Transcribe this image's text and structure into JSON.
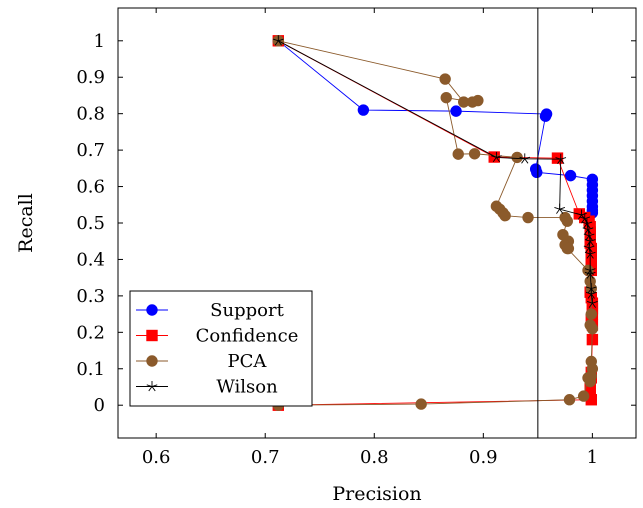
{
  "chart_data": {
    "type": "line",
    "title": "",
    "xlabel": "Precision",
    "ylabel": "Recall",
    "xlim": [
      0.565,
      1.04
    ],
    "ylim": [
      -0.09,
      1.09
    ],
    "x_ticks": [
      0.6,
      0.7,
      0.8,
      0.9,
      1.0
    ],
    "x_tick_labels": [
      "0.6",
      "0.7",
      "0.8",
      "0.9",
      "1"
    ],
    "y_ticks": [
      0,
      0.1,
      0.2,
      0.3,
      0.4,
      0.5,
      0.6,
      0.7,
      0.8,
      0.9,
      1.0
    ],
    "y_tick_labels": [
      "0",
      "0.1",
      "0.2",
      "0.3",
      "0.4",
      "0.5",
      "0.6",
      "0.7",
      "0.8",
      "0.9",
      "1"
    ],
    "vertical_line_x": 0.95,
    "grid": false,
    "legend_position": "bottom-left",
    "series": [
      {
        "name": "Support",
        "color": "#0000ff",
        "marker": "circle",
        "x": [
          0.712,
          0.79,
          0.875,
          0.958,
          0.957,
          0.948,
          0.949,
          0.98,
          1.0,
          1.0,
          1.0,
          1.0,
          1.0,
          1.0,
          1.0,
          1.0
        ],
        "y": [
          1.0,
          0.81,
          0.807,
          0.799,
          0.793,
          0.648,
          0.639,
          0.63,
          0.62,
          0.605,
          0.59,
          0.575,
          0.56,
          0.545,
          0.535,
          0.528
        ]
      },
      {
        "name": "Confidence",
        "color": "#ff0000",
        "marker": "square",
        "x": [
          0.712,
          0.91,
          0.968,
          0.988,
          0.993,
          0.997,
          0.998,
          0.998,
          0.998,
          0.998,
          0.999,
          0.999,
          0.999,
          0.999,
          0.999,
          0.998,
          0.999,
          1.0,
          1.0,
          1.0,
          0.999,
          1.0,
          1.0,
          0.999,
          0.999,
          0.998,
          0.998,
          0.998,
          0.999,
          0.712
        ],
        "y": [
          1.0,
          0.681,
          0.678,
          0.525,
          0.515,
          0.505,
          0.49,
          0.475,
          0.46,
          0.445,
          0.43,
          0.415,
          0.4,
          0.385,
          0.37,
          0.31,
          0.295,
          0.28,
          0.265,
          0.25,
          0.235,
          0.22,
          0.18,
          0.09,
          0.075,
          0.06,
          0.045,
          0.03,
          0.015,
          0.0
        ]
      },
      {
        "name": "PCA",
        "color": "#8b5a2b",
        "marker": "circle",
        "x": [
          0.712,
          0.865,
          0.882,
          0.895,
          0.89,
          0.866,
          0.877,
          0.892,
          0.931,
          0.912,
          0.915,
          0.918,
          0.92,
          0.941,
          0.975,
          0.977,
          0.973,
          0.978,
          0.975,
          0.978,
          0.977,
          0.996,
          0.998,
          0.999,
          0.999,
          0.998,
          1.0,
          0.999,
          1.0,
          0.999,
          0.998,
          0.998,
          0.996,
          0.992,
          0.979,
          0.843,
          0.712
        ],
        "y": [
          1.0,
          0.895,
          0.832,
          0.836,
          0.832,
          0.844,
          0.689,
          0.69,
          0.68,
          0.546,
          0.538,
          0.528,
          0.52,
          0.515,
          0.515,
          0.505,
          0.468,
          0.45,
          0.44,
          0.43,
          0.43,
          0.37,
          0.34,
          0.32,
          0.25,
          0.22,
          0.21,
          0.12,
          0.1,
          0.08,
          0.065,
          0.065,
          0.075,
          0.025,
          0.015,
          0.003,
          0.0
        ]
      },
      {
        "name": "Wilson",
        "color": "#000000",
        "marker": "star",
        "x": [
          0.712,
          0.912,
          0.938,
          0.971,
          0.97,
          0.99,
          0.993,
          0.995,
          0.996,
          0.997,
          0.998,
          0.997,
          0.998,
          0.998,
          0.998,
          0.999,
          0.999,
          1.0
        ],
        "y": [
          1.0,
          0.68,
          0.676,
          0.675,
          0.538,
          0.522,
          0.512,
          0.498,
          0.482,
          0.465,
          0.45,
          0.432,
          0.415,
          0.37,
          0.36,
          0.32,
          0.305,
          0.28
        ]
      }
    ]
  }
}
